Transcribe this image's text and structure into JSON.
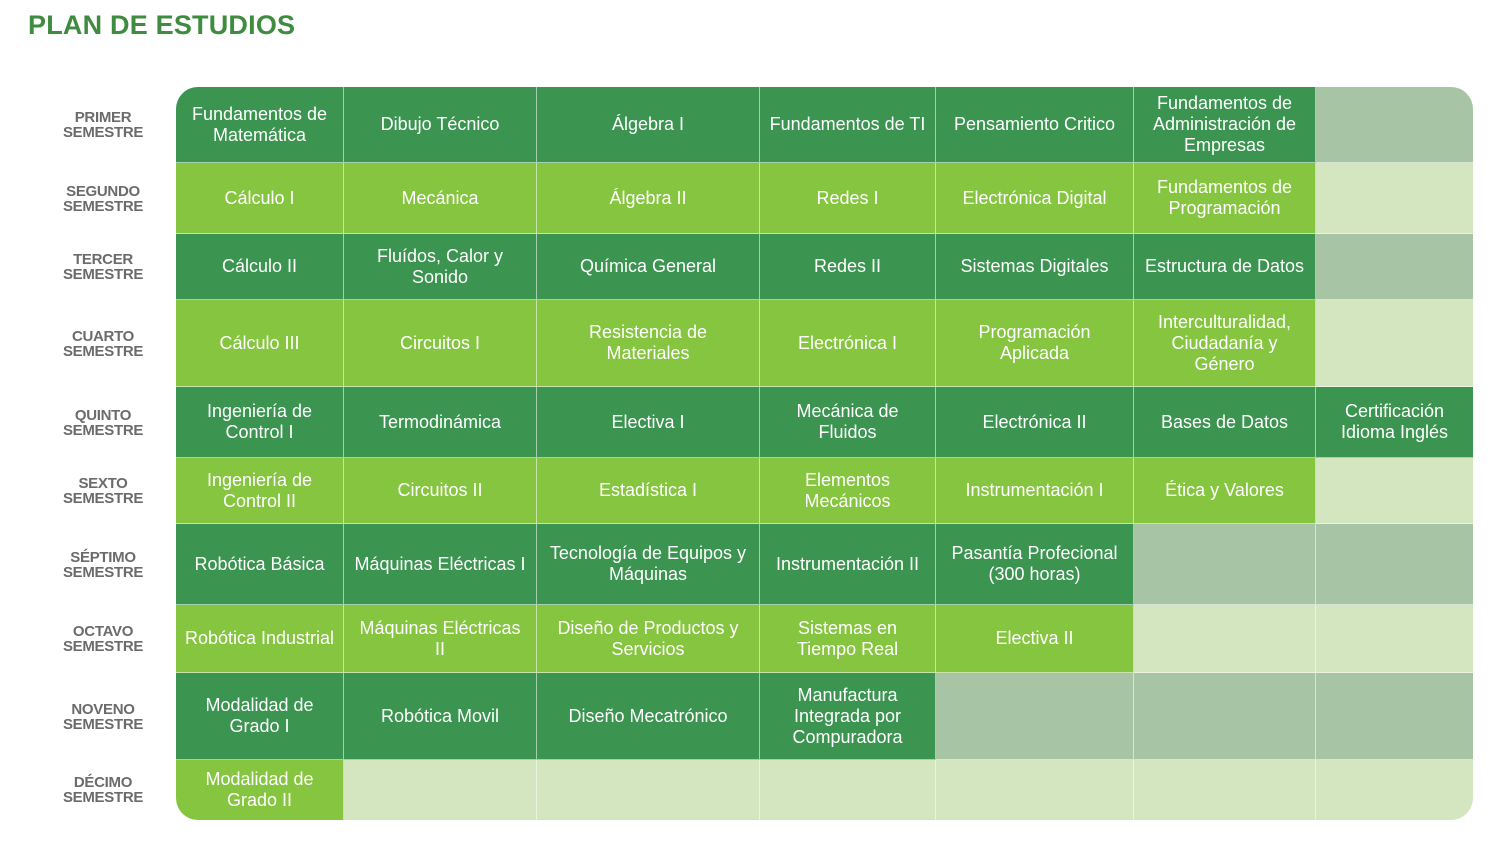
{
  "page_title": "PLAN DE ESTUDIOS",
  "rows": [
    {
      "label_top": "PRIMER",
      "label_bottom": "SEMESTRE",
      "courses": [
        "Fundamentos de Matemática",
        "Dibujo Técnico",
        "Álgebra I",
        "Fundamentos de TI",
        "Pensamiento Critico",
        "Fundamentos de Administración de Empresas",
        ""
      ]
    },
    {
      "label_top": "SEGUNDO",
      "label_bottom": "SEMESTRE",
      "courses": [
        "Cálculo  I",
        "Mecánica",
        "Álgebra II",
        "Redes I",
        "Electrónica Digital",
        "Fundamentos de Programación",
        ""
      ]
    },
    {
      "label_top": "TERCER",
      "label_bottom": "SEMESTRE",
      "courses": [
        "Cálculo  II",
        "Fluídos, Calor y Sonido",
        "Química General",
        "Redes II",
        "Sistemas Digitales",
        "Estructura de Datos",
        ""
      ]
    },
    {
      "label_top": "CUARTO",
      "label_bottom": "SEMESTRE",
      "courses": [
        "Cálculo III",
        "Circuitos I",
        "Resistencia de Materiales",
        "Electrónica I",
        "Programación Aplicada",
        "Interculturalidad, Ciudadanía y Género",
        ""
      ]
    },
    {
      "label_top": "QUINTO",
      "label_bottom": "SEMESTRE",
      "courses": [
        "Ingeniería de Control I",
        "Termodinámica",
        "Electiva I",
        "Mecánica de Fluidos",
        "Electrónica II",
        "Bases de Datos",
        "Certificación Idioma Inglés"
      ]
    },
    {
      "label_top": "SEXTO",
      "label_bottom": "SEMESTRE",
      "courses": [
        "Ingeniería de Control II",
        "Circuitos II",
        "Estadística I",
        "Elementos Mecánicos",
        "Instrumentación I",
        "Ética y Valores",
        ""
      ]
    },
    {
      "label_top": "SÉPTIMO",
      "label_bottom": "SEMESTRE",
      "courses": [
        "Robótica Básica",
        "Máquinas Eléctricas I",
        "Tecnología de Equipos y Máquinas",
        "Instrumentación II",
        "Pasantía Profecional (300 horas)",
        "",
        ""
      ]
    },
    {
      "label_top": "OCTAVO",
      "label_bottom": "SEMESTRE",
      "courses": [
        "Robótica Industrial",
        "Máquinas Eléctricas II",
        "Diseño de Productos y Servicios",
        "Sistemas en Tiempo Real",
        "Electiva II",
        "",
        ""
      ]
    },
    {
      "label_top": "NOVENO",
      "label_bottom": "SEMESTRE",
      "courses": [
        "Modalidad de Grado I",
        "Robótica Movil",
        "Diseño Mecatrónico",
        "Manufactura Integrada por Compuradora",
        "",
        "",
        ""
      ]
    },
    {
      "label_top": "DÉCIMO",
      "label_bottom": "SEMESTRE",
      "courses": [
        "Modalidad de Grado II",
        "",
        "",
        "",
        "",
        "",
        ""
      ]
    }
  ],
  "colors": {
    "title": "#3f8b3f",
    "dark_row": "#3b9450",
    "light_row": "#86c540",
    "dark_row_empty": "#a7c5a4",
    "light_row_empty": "#d3e6bf",
    "label": "#6b6b6b"
  }
}
